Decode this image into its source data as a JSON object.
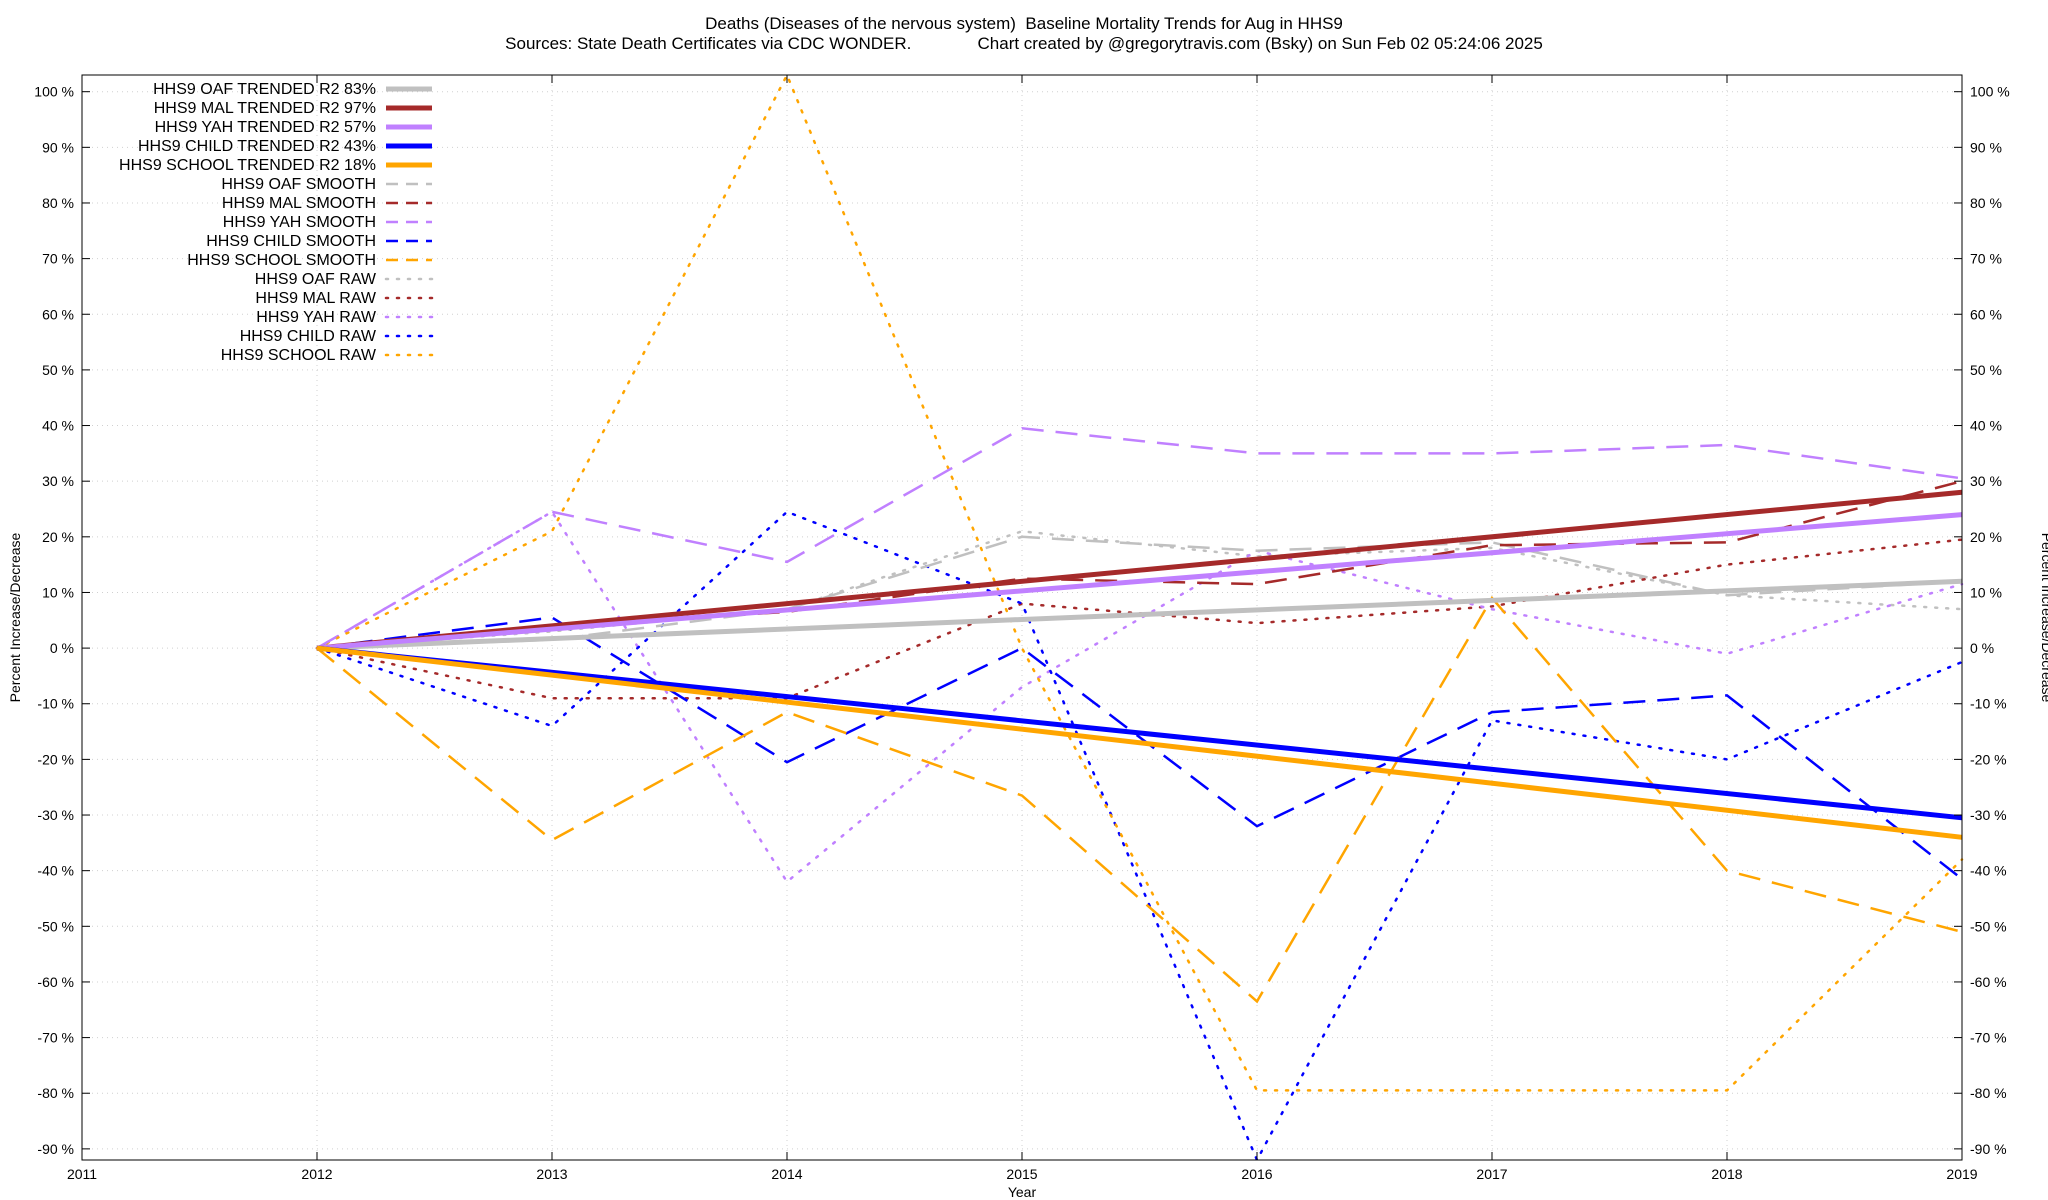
{
  "header": {
    "title": "Deaths (Diseases of the nervous system)  Baseline Mortality Trends for Aug in HHS9",
    "subtitle": "Sources: State Death Certificates via CDC WONDER.              Chart created by @gregorytravis.com (Bsky) on Sun Feb 02 05:24:06 2025"
  },
  "chart_data": {
    "type": "line",
    "title": "Deaths (Diseases of the nervous system)  Baseline Mortality Trends for Aug in HHS9",
    "xlabel": "Year",
    "ylabel": "Percent Increase/Decrease",
    "y2label": "Percent Increase/Decrease",
    "xlim": [
      2011,
      2019
    ],
    "ylim": [
      -92,
      103
    ],
    "x_ticks": [
      "2011",
      "2012",
      "2013",
      "2014",
      "2015",
      "2016",
      "2017",
      "2018",
      "2019"
    ],
    "y_ticks": [
      "100 %",
      "90 %",
      "80 %",
      "70 %",
      "60 %",
      "50 %",
      "40 %",
      "30 %",
      "20 %",
      "10 %",
      "0 %",
      "-10 %",
      "-20 %",
      "-30 %",
      "-40 %",
      "-50 %",
      "-60 %",
      "-70 %",
      "-80 %",
      "-90 %"
    ],
    "y_tick_values": [
      100,
      90,
      80,
      70,
      60,
      50,
      40,
      30,
      20,
      10,
      0,
      -10,
      -20,
      -30,
      -40,
      -50,
      -60,
      -70,
      -80,
      -90
    ],
    "grid": true,
    "legend_position": "top-left",
    "series": [
      {
        "name": "HHS9 OAF TRENDED R2  83%",
        "color": "#c0c0c0",
        "style": "solid",
        "x": [
          2012,
          2019
        ],
        "values": [
          0,
          12
        ]
      },
      {
        "name": "HHS9 MAL TRENDED R2  97%",
        "color": "#a52a2a",
        "style": "solid",
        "x": [
          2012,
          2019
        ],
        "values": [
          0,
          28
        ]
      },
      {
        "name": "HHS9 YAH TRENDED R2  57%",
        "color": "#c080ff",
        "style": "solid",
        "x": [
          2012,
          2019
        ],
        "values": [
          0,
          24
        ]
      },
      {
        "name": "HHS9 CHILD TRENDED R2  43%",
        "color": "#0000ff",
        "style": "solid",
        "x": [
          2012,
          2019
        ],
        "values": [
          0,
          -30.5
        ]
      },
      {
        "name": "HHS9 SCHOOL TRENDED R2  18%",
        "color": "#ffa500",
        "style": "solid",
        "x": [
          2012,
          2019
        ],
        "values": [
          0,
          -34
        ]
      },
      {
        "name": "HHS9 OAF SMOOTH",
        "color": "#c0c0c0",
        "style": "dashed",
        "x": [
          2012,
          2013,
          2014,
          2015,
          2016,
          2017,
          2018,
          2019
        ],
        "values": [
          0,
          1.5,
          7,
          20,
          17.5,
          19,
          9.5,
          12
        ]
      },
      {
        "name": "HHS9 MAL SMOOTH",
        "color": "#a52a2a",
        "style": "dashed",
        "x": [
          2012,
          2013,
          2014,
          2015,
          2016,
          2017,
          2018,
          2019
        ],
        "values": [
          0,
          4,
          6.5,
          12.5,
          11.5,
          18.5,
          19,
          30
        ]
      },
      {
        "name": "HHS9 YAH SMOOTH",
        "color": "#c080ff",
        "style": "dashed",
        "x": [
          2012,
          2013,
          2014,
          2015,
          2016,
          2017,
          2018,
          2019
        ],
        "values": [
          0,
          24.5,
          15.5,
          39.5,
          35,
          35,
          36.5,
          30.5
        ]
      },
      {
        "name": "HHS9 CHILD SMOOTH",
        "color": "#0000ff",
        "style": "dashed",
        "x": [
          2012,
          2013,
          2014,
          2015,
          2016,
          2017,
          2018,
          2019
        ],
        "values": [
          0,
          5.5,
          -20.5,
          0,
          -32,
          -11.5,
          -8.5,
          -41.5
        ]
      },
      {
        "name": "HHS9 SCHOOL SMOOTH",
        "color": "#ffa500",
        "style": "dashed",
        "x": [
          2012,
          2013,
          2014,
          2015,
          2016,
          2017,
          2018,
          2019
        ],
        "values": [
          0,
          -34.5,
          -11.5,
          -26.5,
          -63.5,
          9,
          -40,
          -51
        ]
      },
      {
        "name": "HHS9 OAF RAW",
        "color": "#c0c0c0",
        "style": "dotted",
        "x": [
          2012,
          2013,
          2014,
          2015,
          2016,
          2017,
          2018,
          2019
        ],
        "values": [
          0,
          3,
          7,
          21,
          16.5,
          18,
          9.5,
          7
        ]
      },
      {
        "name": "HHS9 MAL RAW",
        "color": "#a52a2a",
        "style": "dotted",
        "x": [
          2012,
          2013,
          2014,
          2015,
          2016,
          2017,
          2018,
          2019
        ],
        "values": [
          0,
          -9,
          -9,
          8,
          4.5,
          7.5,
          15,
          19.5
        ]
      },
      {
        "name": "HHS9 YAH RAW",
        "color": "#c080ff",
        "style": "dotted",
        "x": [
          2012,
          2013,
          2014,
          2015,
          2016,
          2017,
          2018,
          2019
        ],
        "values": [
          0,
          24.5,
          -42,
          -7,
          17.5,
          7,
          -1,
          11.5
        ]
      },
      {
        "name": "HHS9 CHILD RAW",
        "color": "#0000ff",
        "style": "dotted",
        "x": [
          2012,
          2013,
          2014,
          2015,
          2016,
          2017,
          2018,
          2019
        ],
        "values": [
          0,
          -14,
          24.5,
          8,
          -92,
          -13,
          -20,
          -2.5
        ]
      },
      {
        "name": "HHS9 SCHOOL RAW",
        "color": "#ffa500",
        "style": "dotted",
        "x": [
          2012,
          2013,
          2014,
          2015,
          2016,
          2017,
          2018,
          2019
        ],
        "values": [
          0,
          21,
          103,
          0,
          -79.5,
          -79.5,
          -79.5,
          -38
        ]
      }
    ]
  }
}
